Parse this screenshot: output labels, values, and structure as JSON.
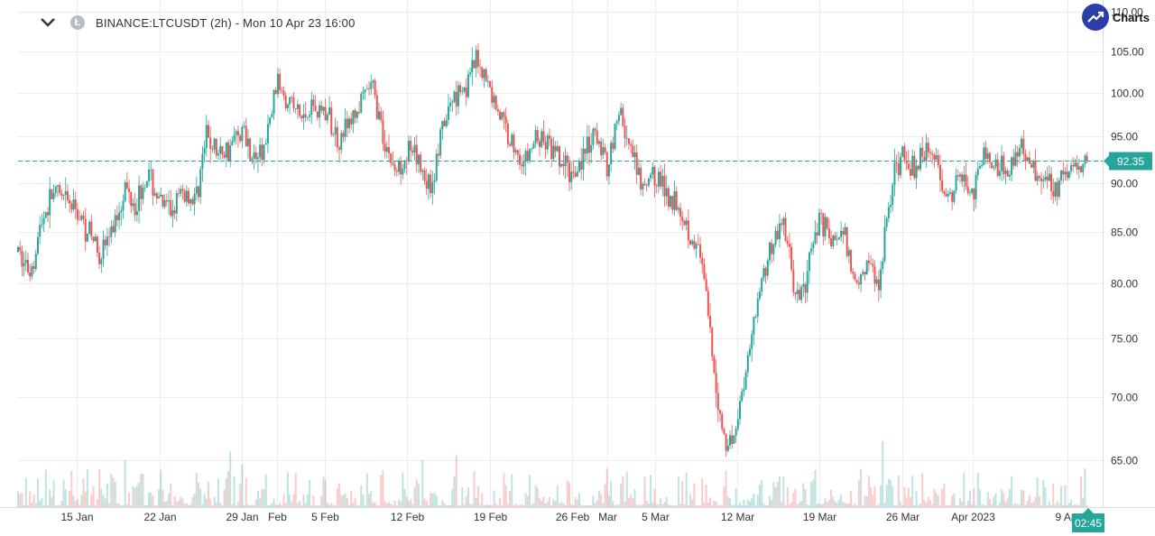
{
  "header": {
    "symbol_label": "BINANCE:LTCUSDT (2h) - Mon 10 Apr 23 16:00",
    "coin_icon": "litecoin-icon",
    "collapse_icon": "chevron-down-icon"
  },
  "brand": {
    "label": "Charts",
    "icon": "trend-up-icon"
  },
  "chart_data": {
    "type": "candlestick",
    "symbol": "BINANCE:LTCUSDT",
    "interval": "2h",
    "last_price": 92.35,
    "price_label": "92.35",
    "countdown_label": "02:45",
    "colors": {
      "up": "#26a69a",
      "down": "#ef5350",
      "price_line": "#26a69a"
    },
    "grid": true,
    "y_axis": {
      "ticks": [
        65.0,
        70.0,
        75.0,
        80.0,
        85.0,
        90.0,
        95.0,
        100.0,
        105.0,
        110.0
      ],
      "tick_labels": [
        "65.00",
        "70.00",
        "75.00",
        "80.00",
        "85.00",
        "90.00",
        "95.00",
        "100.00",
        "105.00",
        "110.00"
      ],
      "scale": "log"
    },
    "x_axis": {
      "tick_labels": [
        "15 Jan",
        "22 Jan",
        "29 Jan",
        "Feb",
        "5 Feb",
        "12 Feb",
        "19 Feb",
        "26 Feb",
        "Mar",
        "5 Mar",
        "12 Mar",
        "19 Mar",
        "26 Mar",
        "Apr 2023",
        "9 Apr"
      ],
      "tick_days": [
        15,
        22,
        29,
        32,
        36,
        43,
        50,
        57,
        60,
        64,
        71,
        78,
        85,
        91,
        99
      ]
    },
    "price_path": {
      "days": [
        10,
        11,
        12,
        13,
        14,
        15,
        17,
        18,
        19,
        20,
        21,
        22,
        23,
        24,
        25,
        26,
        27,
        28,
        29,
        30,
        31,
        32,
        34,
        35,
        36,
        37,
        38,
        40,
        41,
        42,
        43,
        44,
        45,
        46,
        47,
        48,
        49,
        51,
        52,
        53,
        54,
        55,
        56,
        57,
        58,
        59,
        60,
        61,
        62,
        63,
        64,
        65,
        66,
        67,
        68,
        69,
        70,
        71,
        72,
        73,
        74,
        75,
        76,
        77,
        78,
        79,
        80,
        81,
        82,
        83,
        84,
        85,
        86,
        87,
        88,
        89,
        90,
        91,
        92,
        93,
        94,
        95,
        96,
        97,
        98,
        99,
        100.67
      ],
      "close": [
        83.0,
        81.0,
        86.0,
        89.0,
        88.0,
        87.0,
        83.0,
        85.0,
        89.5,
        88.0,
        91.0,
        88.0,
        87.0,
        89.0,
        88.0,
        95.0,
        93.0,
        94.0,
        96.0,
        92.5,
        94.0,
        101.5,
        97.0,
        98.5,
        98.0,
        95.0,
        96.0,
        101.0,
        95.0,
        91.0,
        93.5,
        92.0,
        89.5,
        95.5,
        100.0,
        101.0,
        104.0,
        97.0,
        94.0,
        92.0,
        95.0,
        94.0,
        92.0,
        91.0,
        93.0,
        95.0,
        92.0,
        98.0,
        93.0,
        89.0,
        91.0,
        89.0,
        88.0,
        85.0,
        82.0,
        72.0,
        66.0,
        68.0,
        74.0,
        80.0,
        84.0,
        86.0,
        78.0,
        81.0,
        87.0,
        84.0,
        85.0,
        80.0,
        82.0,
        80.0,
        89.0,
        93.5,
        91.0,
        94.0,
        92.0,
        88.0,
        91.0,
        89.0,
        93.0,
        92.0,
        91.5,
        94.0,
        92.0,
        90.5,
        90.0,
        91.0,
        92.35
      ]
    }
  }
}
